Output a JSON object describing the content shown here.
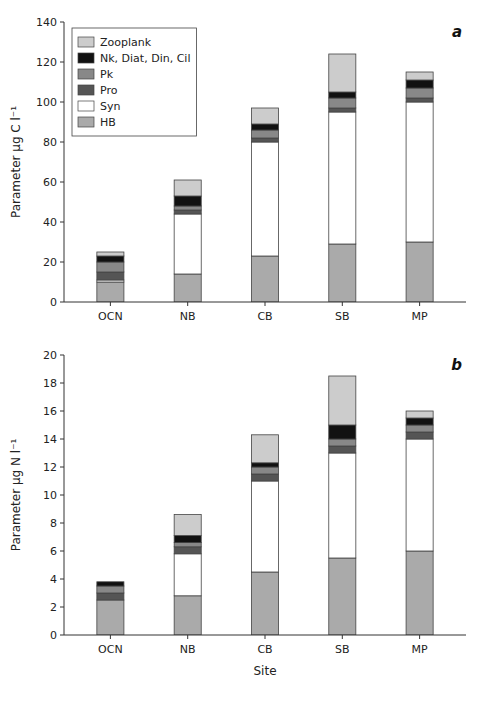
{
  "chart_data": [
    {
      "type": "bar",
      "stacked": true,
      "title": "a",
      "ylabel": "Parameter μg C l⁻¹",
      "categories": [
        "OCN",
        "NB",
        "CB",
        "SB",
        "MP"
      ],
      "ylim": [
        0,
        140
      ],
      "yticks": [
        0,
        20,
        40,
        60,
        80,
        100,
        120,
        140
      ],
      "grid": false,
      "legend": "upper left",
      "series": [
        {
          "name": "HB",
          "color": "#aaaaaa",
          "values": [
            10,
            14,
            23,
            29,
            30
          ]
        },
        {
          "name": "Syn",
          "color": "#ffffff",
          "values": [
            1,
            30,
            57,
            66,
            70
          ]
        },
        {
          "name": "Pro",
          "color": "#555555",
          "values": [
            4,
            2,
            2,
            2,
            2
          ]
        },
        {
          "name": "Pk",
          "color": "#888888",
          "values": [
            5,
            2,
            4,
            5,
            5
          ]
        },
        {
          "name": "Nk, Diat, Din, Cil",
          "color": "#111111",
          "values": [
            3,
            5,
            3,
            3,
            4
          ]
        },
        {
          "name": "Zooplank",
          "color": "#cccccc",
          "values": [
            2,
            8,
            8,
            19,
            4
          ]
        }
      ]
    },
    {
      "type": "bar",
      "stacked": true,
      "title": "b",
      "ylabel": "Parameter μg N l⁻¹",
      "xlabel": "Site",
      "categories": [
        "OCN",
        "NB",
        "CB",
        "SB",
        "MP"
      ],
      "ylim": [
        0,
        20
      ],
      "yticks": [
        0,
        2,
        4,
        6,
        8,
        10,
        12,
        14,
        16,
        18,
        20
      ],
      "grid": false,
      "series": [
        {
          "color": "#aaaaaa",
          "values": [
            2.5,
            2.8,
            4.5,
            5.5,
            6.0
          ]
        },
        {
          "color": "#ffffff",
          "values": [
            0.0,
            3.0,
            6.5,
            7.5,
            8.0
          ]
        },
        {
          "color": "#555555",
          "values": [
            0.5,
            0.5,
            0.5,
            0.5,
            0.5
          ]
        },
        {
          "color": "#888888",
          "values": [
            0.5,
            0.3,
            0.5,
            0.5,
            0.5
          ]
        },
        {
          "color": "#111111",
          "values": [
            0.3,
            0.5,
            0.3,
            1.0,
            0.5
          ]
        },
        {
          "color": "#cccccc",
          "values": [
            0.0,
            1.5,
            2.0,
            3.5,
            0.5
          ]
        }
      ]
    }
  ]
}
